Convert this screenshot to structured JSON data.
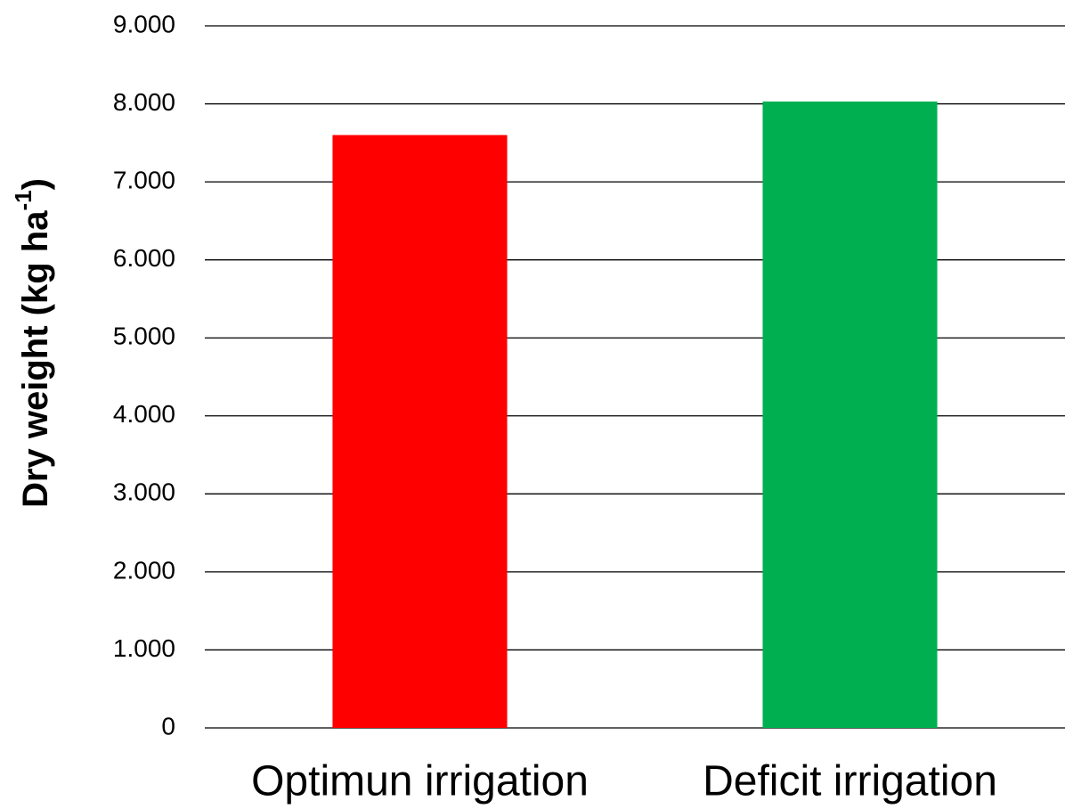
{
  "chart_data": {
    "type": "bar",
    "y_label": {
      "text": "Dry weight (kg ha",
      "superscript": "-1",
      "suffix": ")"
    },
    "categories": [
      "Optimun irrigation",
      "Deficit irrigation"
    ],
    "values": [
      7600,
      8030
    ],
    "colors": [
      "#ff0000",
      "#00b050"
    ],
    "ylim": [
      0,
      9000
    ],
    "yticks": [
      0,
      {
        "value": 1000,
        "label": "1.000"
      },
      {
        "value": 2000,
        "label": "2.000"
      },
      {
        "value": 3000,
        "label": "3.000"
      },
      {
        "value": 4000,
        "label": "4.000"
      },
      {
        "value": 5000,
        "label": "5.000"
      },
      {
        "value": 6000,
        "label": "6.000"
      },
      {
        "value": 7000,
        "label": "7.000"
      },
      {
        "value": 8000,
        "label": "8.000"
      },
      {
        "value": 9000,
        "label": "9.000"
      }
    ],
    "grid": true
  }
}
